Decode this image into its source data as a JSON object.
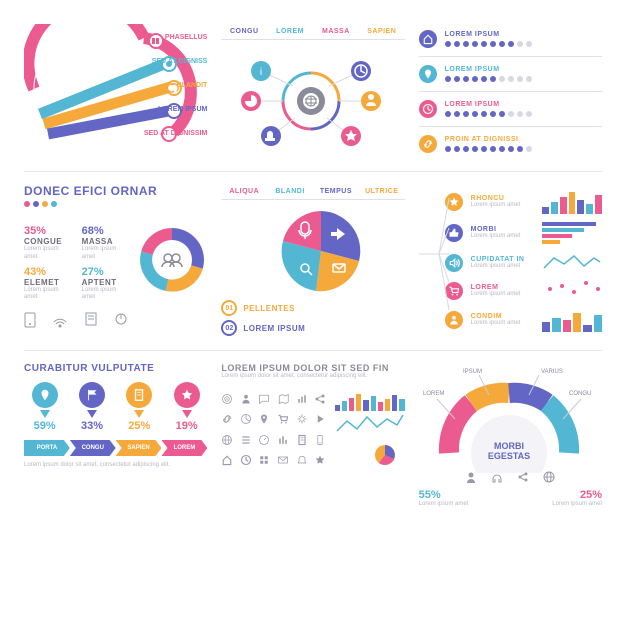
{
  "palette": {
    "purple": "#6366c4",
    "cyan": "#53b7d4",
    "pink": "#ec5b8f",
    "orange": "#f6a93b",
    "grey": "#8a8a9a",
    "light": "#c9c9d6",
    "text": "#6b6b7b",
    "faint": "#e0e0e8"
  },
  "lorem_short": "Lorem ipsum dolor sit amet, consectetur adipiscing elit.",
  "lorem_tiny": "Lorem ipsum amet",
  "swoosh": {
    "items": [
      {
        "label": "PHASELLUS",
        "color": "#ec5b8f"
      },
      {
        "label": "SED AT DIGNISS",
        "color": "#53b7d4"
      },
      {
        "label": "BLANDIT",
        "color": "#f6a93b"
      },
      {
        "label": "LOREM IPSUM",
        "color": "#6366c4"
      },
      {
        "label": "SED AT DIGNISSIM",
        "color": "#ec5b8f"
      }
    ]
  },
  "p2": {
    "tabs": [
      "CONGU",
      "LOREM",
      "MASSA",
      "SAPIEN"
    ],
    "tab_colors": [
      "#6366c4",
      "#53b7d4",
      "#ec5b8f",
      "#f6a93b"
    ],
    "center_icon": "globe",
    "node_icons": [
      "info",
      "clock",
      "pie",
      "thumb",
      "star",
      "person"
    ]
  },
  "p3": {
    "rows": [
      {
        "icon": "home",
        "color": "#6366c4",
        "label": "LOREM IPSUM",
        "dots": 10,
        "fill": 8
      },
      {
        "icon": "pin",
        "color": "#53b7d4",
        "label": "LOREM IPSUM",
        "dots": 10,
        "fill": 6
      },
      {
        "icon": "clock",
        "color": "#ec5b8f",
        "label": "LOREM IPSUM",
        "dots": 10,
        "fill": 7
      },
      {
        "icon": "link",
        "color": "#f6a93b",
        "label": "PROIN AT DIGNISSI",
        "dots": 10,
        "fill": 9
      }
    ],
    "dot_on": "#6366c4",
    "dot_off": "#d8d8e2"
  },
  "p4": {
    "title": "DONEC EFICI ORNAR",
    "segments": [
      {
        "pct": 35,
        "label": "CONGUE",
        "color": "#ec5b8f"
      },
      {
        "pct": 68,
        "label": "MASSA",
        "color": "#6366c4"
      },
      {
        "pct": 43,
        "label": "ELEMET",
        "color": "#f6a93b"
      },
      {
        "pct": 27,
        "label": "APTENT",
        "color": "#53b7d4"
      }
    ],
    "center_icon": "users"
  },
  "p5": {
    "tabs": [
      "ALIQUA",
      "BLANDI",
      "TEMPUS",
      "ULTRICE"
    ],
    "tab_colors": [
      "#ec5b8f",
      "#53b7d4",
      "#6366c4",
      "#f6a93b"
    ],
    "pie": [
      {
        "pct": 30,
        "color": "#6366c4"
      },
      {
        "pct": 25,
        "color": "#f6a93b"
      },
      {
        "pct": 20,
        "color": "#53b7d4"
      },
      {
        "pct": 25,
        "color": "#ec5b8f"
      }
    ],
    "steps": [
      {
        "n": "01",
        "label": "PELLENTES",
        "color": "#f6a93b"
      },
      {
        "n": "02",
        "label": "LOREM IPSUM",
        "color": "#6366c4"
      }
    ]
  },
  "p6": {
    "rows": [
      {
        "icon": "star",
        "color": "#f6a93b",
        "label": "RHONCU",
        "bars": [
          30,
          50,
          70,
          90,
          60,
          40,
          80
        ]
      },
      {
        "icon": "thumb",
        "color": "#6366c4",
        "label": "MORBI",
        "bars": [
          90,
          70,
          50,
          30
        ]
      },
      {
        "icon": "sound",
        "color": "#53b7d4",
        "label": "CUPIDATAT IN",
        "line": true
      },
      {
        "icon": "cart",
        "color": "#ec5b8f",
        "label": "LOREM",
        "dots": [
          3,
          4,
          2,
          5,
          3
        ]
      },
      {
        "icon": "person",
        "color": "#f6a93b",
        "label": "CONDIM",
        "bars": [
          40,
          60,
          50,
          80,
          30,
          70
        ]
      }
    ]
  },
  "p7": {
    "title": "CURABITUR VULPUTATE",
    "markers": [
      {
        "icon": "pin",
        "color": "#53b7d4",
        "pct": 59
      },
      {
        "icon": "flag",
        "color": "#6366c4",
        "pct": 33
      },
      {
        "icon": "doc",
        "color": "#f6a93b",
        "pct": 25
      },
      {
        "icon": "star",
        "color": "#ec5b8f",
        "pct": 19
      }
    ],
    "tabs": [
      "PORTA",
      "CONGU",
      "SAPIEN",
      "LOREM"
    ],
    "tab_colors": [
      "#53b7d4",
      "#6366c4",
      "#f6a93b",
      "#ec5b8f"
    ]
  },
  "p8": {
    "title": "LOREM IPSUM DOLOR SIT SED FIN",
    "bars": [
      25,
      40,
      55,
      70,
      45,
      60,
      35,
      50,
      65,
      48
    ],
    "bar_colors": [
      "#6366c4",
      "#53b7d4",
      "#ec5b8f",
      "#f6a93b",
      "#6366c4",
      "#53b7d4",
      "#ec5b8f",
      "#f6a93b",
      "#6366c4",
      "#53b7d4"
    ],
    "icons": [
      "target",
      "person",
      "chat",
      "map",
      "chart",
      "share",
      "link",
      "pie",
      "pin",
      "cart",
      "gear",
      "play",
      "globe",
      "list",
      "dial",
      "eq",
      "doc",
      "phone",
      "home",
      "clock",
      "grid",
      "mail",
      "bell",
      "star"
    ]
  },
  "p9": {
    "center": "MORBI EGESTAS",
    "segments": [
      {
        "color": "#ec5b8f",
        "label": "LOREM"
      },
      {
        "color": "#f6a93b",
        "label": "IPSUM"
      },
      {
        "color": "#6366c4",
        "label": "VARIUS"
      },
      {
        "color": "#53b7d4",
        "label": "CONGU"
      }
    ],
    "bottom_icons": [
      "person",
      "headset",
      "share",
      "globe"
    ],
    "stats": [
      {
        "pct": 55,
        "color": "#53b7d4"
      },
      {
        "pct": 25,
        "color": "#ec5b8f"
      }
    ]
  }
}
